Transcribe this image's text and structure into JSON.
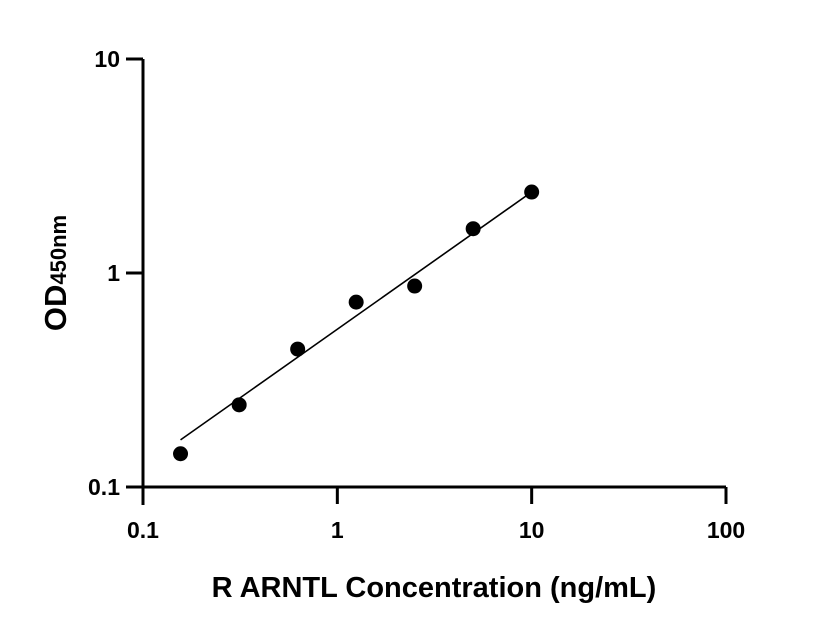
{
  "chart_data": {
    "type": "scatter",
    "title": "",
    "xlabel": "R ARNTL Concentration (ng/mL)",
    "ylabel_main": "OD",
    "ylabel_sub": "450nm",
    "x_scale": "log",
    "y_scale": "log",
    "xlim": [
      0.1,
      100
    ],
    "ylim": [
      0.1,
      10
    ],
    "x_ticks": [
      0.1,
      1,
      10,
      100
    ],
    "x_tick_labels": [
      "0.1",
      "1",
      "10",
      "100"
    ],
    "y_ticks": [
      0.1,
      1,
      10
    ],
    "y_tick_labels": [
      "0.1",
      "1",
      "10"
    ],
    "grid": false,
    "points": {
      "x": [
        0.156,
        0.3125,
        0.625,
        1.25,
        2.5,
        5,
        10
      ],
      "y": [
        0.143,
        0.242,
        0.441,
        0.731,
        0.869,
        1.61,
        2.39
      ]
    },
    "fit_line": {
      "x": [
        0.156,
        10
      ],
      "y": [
        0.166,
        2.39
      ]
    },
    "colors": {
      "marker": "#000000",
      "line": "#000000",
      "axis": "#000000"
    }
  }
}
